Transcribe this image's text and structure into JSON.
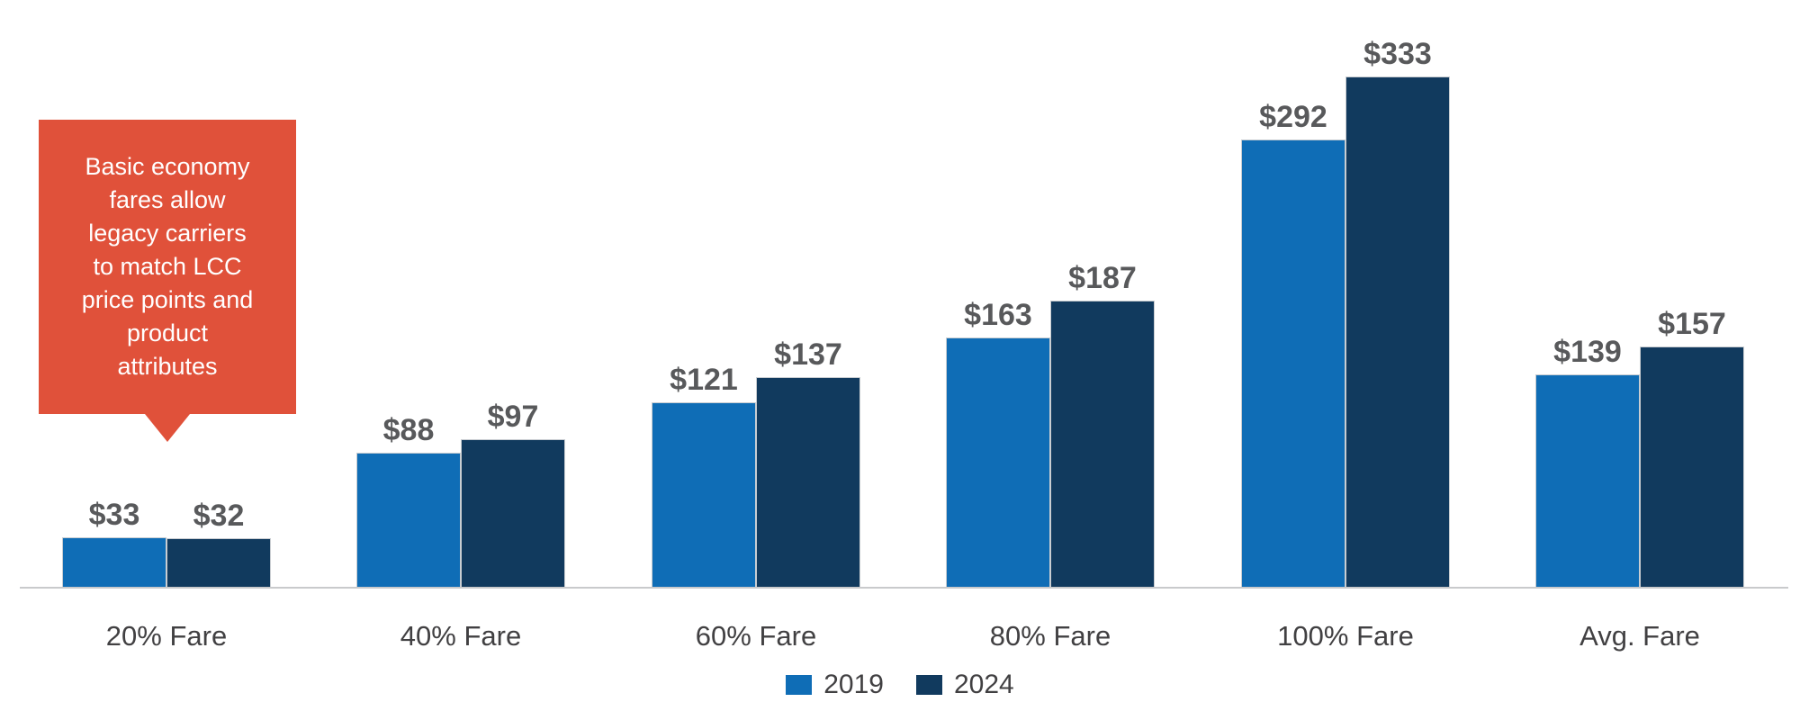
{
  "callout": {
    "text": "Basic economy fares allow legacy carriers to match LCC price points and product attributes",
    "lines": [
      "Basic economy",
      "fares allow",
      "legacy carriers",
      "to match LCC",
      "price points and",
      "product",
      "attributes"
    ],
    "bg_color": "#E0513A",
    "text_color": "#FFFFFF"
  },
  "chart_data": {
    "type": "bar",
    "categories": [
      "20% Fare",
      "40% Fare",
      "60% Fare",
      "80% Fare",
      "100% Fare",
      "Avg. Fare"
    ],
    "series": [
      {
        "name": "2019",
        "color": "#0F6DB6",
        "values": [
          33,
          88,
          121,
          163,
          292,
          139
        ],
        "labels": [
          "$33",
          "$88",
          "$121",
          "$163",
          "$292",
          "$139"
        ]
      },
      {
        "name": "2024",
        "color": "#113A5E",
        "values": [
          32,
          97,
          137,
          187,
          333,
          157
        ],
        "labels": [
          "$32",
          "$97",
          "$137",
          "$187",
          "$333",
          "$157"
        ]
      }
    ],
    "title": "",
    "xlabel": "",
    "ylabel": "",
    "ylim": [
      0,
      340
    ],
    "grid": false,
    "legend_position": "bottom",
    "value_label_color": "#58595B",
    "axis_text_color": "#414042",
    "baseline_color": "#C9CACC"
  }
}
